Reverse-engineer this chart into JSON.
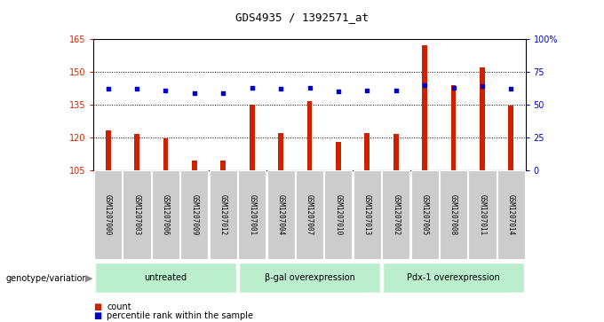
{
  "title": "GDS4935 / 1392571_at",
  "samples": [
    "GSM1207000",
    "GSM1207003",
    "GSM1207006",
    "GSM1207009",
    "GSM1207012",
    "GSM1207001",
    "GSM1207004",
    "GSM1207007",
    "GSM1207010",
    "GSM1207013",
    "GSM1207002",
    "GSM1207005",
    "GSM1207008",
    "GSM1207011",
    "GSM1207014"
  ],
  "counts": [
    123.5,
    121.5,
    119.5,
    109.5,
    109.5,
    135.0,
    122.0,
    136.5,
    118.0,
    122.0,
    121.5,
    162.0,
    144.0,
    152.0,
    134.5
  ],
  "percentiles": [
    62,
    62,
    61,
    59,
    59,
    63,
    62,
    63,
    60,
    61,
    61,
    65,
    63,
    64,
    62
  ],
  "groups": [
    {
      "label": "untreated",
      "start": 0,
      "end": 5
    },
    {
      "label": "β-gal overexpression",
      "start": 5,
      "end": 10
    },
    {
      "label": "Pdx-1 overexpression",
      "start": 10,
      "end": 15
    }
  ],
  "ylim_left": [
    105,
    165
  ],
  "ylim_right": [
    0,
    100
  ],
  "yticks_left": [
    105,
    120,
    135,
    150,
    165
  ],
  "yticks_right": [
    0,
    25,
    50,
    75,
    100
  ],
  "bar_color": "#cc2200",
  "dot_color": "#0000cc",
  "group_color": "#bbeecc",
  "sample_bg_color": "#cccccc",
  "grid_color": "#000000",
  "ylabel_left_color": "#cc2200",
  "ylabel_right_color": "#0000cc",
  "legend_count_label": "count",
  "legend_pct_label": "percentile rank within the sample",
  "genotype_label": "genotype/variation"
}
